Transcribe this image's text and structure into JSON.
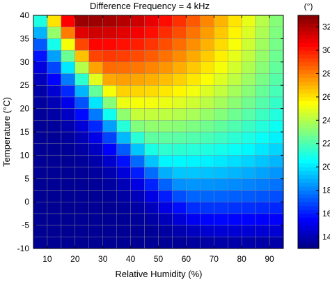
{
  "chart_data": {
    "type": "heatmap",
    "title": "Difference Frequency = 4 kHz",
    "xlabel": "Relative Humidity (%)",
    "ylabel": "Temperature (°C)",
    "colorbar_label": "(°)",
    "x_range": [
      5,
      95
    ],
    "y_range": [
      -10,
      40
    ],
    "x_ticks": [
      10,
      20,
      30,
      40,
      50,
      60,
      70,
      80,
      90
    ],
    "y_ticks": [
      -10,
      -5,
      0,
      5,
      10,
      15,
      20,
      25,
      30,
      35,
      40
    ],
    "colorbar_range": [
      13,
      33
    ],
    "colorbar_ticks": [
      14,
      16,
      18,
      20,
      22,
      24,
      26,
      28,
      30,
      32
    ],
    "colormap": "jet",
    "grid_x_step": 5,
    "grid_y_step": 2.5,
    "description_of_values": "Heatmap values (degrees) form a ridge: maximum about 33 near 20-25% humidity at 40 °C; minimum about 13.5 at low temperature and low humidity; values rise with temperature and the peak shifts to higher humidity as temperature falls."
  },
  "colors": {
    "jet": [
      "#00007f",
      "#0000ff",
      "#007fff",
      "#00ffff",
      "#7fff7f",
      "#ffff00",
      "#ff7f00",
      "#ff0000",
      "#7f0000"
    ],
    "axis": "#000000",
    "grid": "#8c8c8c"
  }
}
